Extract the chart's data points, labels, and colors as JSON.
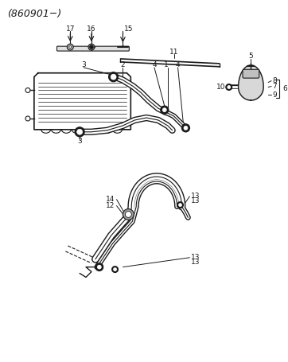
{
  "title": "(860901−)",
  "bg_color": "#ffffff",
  "line_color": "#1a1a1a",
  "text_color": "#1a1a1a",
  "figsize": [
    3.62,
    4.55
  ],
  "dpi": 100
}
